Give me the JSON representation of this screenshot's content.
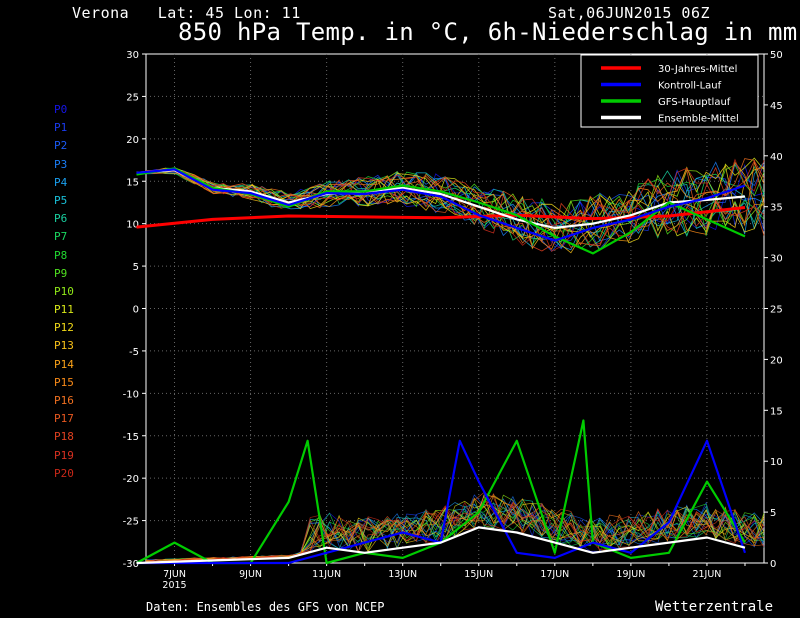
{
  "header": {
    "location": "Verona   Lat: 45 Lon: 11",
    "run": "Sat,06JUN2015 06Z",
    "title": "850 hPa Temp. in °C, 6h-Niederschlag in mm"
  },
  "footer": {
    "source": "Daten: Ensembles des GFS von NCEP",
    "brand": "Wetterzentrale"
  },
  "members": [
    {
      "label": "P0",
      "color": "#1515e8"
    },
    {
      "label": "P1",
      "color": "#1a3cf0"
    },
    {
      "label": "P2",
      "color": "#1a5af5"
    },
    {
      "label": "P3",
      "color": "#1a7df5"
    },
    {
      "label": "P4",
      "color": "#1aa0f0"
    },
    {
      "label": "P5",
      "color": "#19c0d8"
    },
    {
      "label": "P6",
      "color": "#19d0a0"
    },
    {
      "label": "P7",
      "color": "#1ad860"
    },
    {
      "label": "P8",
      "color": "#20d830"
    },
    {
      "label": "P9",
      "color": "#50e020"
    },
    {
      "label": "P10",
      "color": "#90e818"
    },
    {
      "label": "P11",
      "color": "#d8e818"
    },
    {
      "label": "P12",
      "color": "#f0d818"
    },
    {
      "label": "P13",
      "color": "#f8c018"
    },
    {
      "label": "P14",
      "color": "#f8a018"
    },
    {
      "label": "P15",
      "color": "#f88a18"
    },
    {
      "label": "P16",
      "color": "#f07020"
    },
    {
      "label": "P17",
      "color": "#e85820"
    },
    {
      "label": "P18",
      "color": "#e04020"
    },
    {
      "label": "P19",
      "color": "#d83020"
    },
    {
      "label": "P20",
      "color": "#c82818"
    }
  ],
  "chart_data": {
    "type": "line",
    "title": "850 hPa Temp. in °C, 6h-Niederschlag in mm",
    "x_ticks": [
      "7JUN",
      "9JUN",
      "11JUN",
      "13JUN",
      "15JUN",
      "17JUN",
      "19JUN",
      "21JUN"
    ],
    "x_year_label": "2015",
    "x_range": [
      "2015-06-06T06",
      "2015-06-22T12"
    ],
    "y_left": {
      "range": [
        -30,
        30
      ],
      "ticks": [
        30,
        25,
        20,
        15,
        10,
        5,
        0,
        -5,
        -10,
        -15,
        -20,
        -25,
        -30
      ]
    },
    "y_right": {
      "range": [
        0,
        50
      ],
      "ticks": [
        50,
        45,
        40,
        35,
        30,
        25,
        20,
        15,
        10,
        5,
        0
      ]
    },
    "grid": true,
    "legend_position": "top-right",
    "legend": [
      {
        "name": "30-Jahres-Mittel",
        "color": "#ff0000"
      },
      {
        "name": "Kontroll-Lauf",
        "color": "#0000ff"
      },
      {
        "name": "GFS-Hauptlauf",
        "color": "#00cc00"
      },
      {
        "name": "Ensemble-Mittel",
        "color": "#ffffff"
      }
    ],
    "temperature_series": [
      {
        "name": "30-Jahres-Mittel",
        "axis": "left",
        "color": "#ff0000",
        "x": [
          "2015-06-06",
          "2015-06-08",
          "2015-06-10",
          "2015-06-12",
          "2015-06-14",
          "2015-06-16",
          "2015-06-18",
          "2015-06-20",
          "2015-06-22"
        ],
        "values": [
          9.6,
          10.5,
          10.9,
          10.8,
          10.7,
          11.0,
          10.6,
          10.9,
          11.9
        ]
      },
      {
        "name": "Ensemble-Mittel",
        "axis": "left",
        "color": "#ffffff",
        "x": [
          "2015-06-06",
          "2015-06-07",
          "2015-06-08",
          "2015-06-09",
          "2015-06-10",
          "2015-06-11",
          "2015-06-12",
          "2015-06-13",
          "2015-06-14",
          "2015-06-15",
          "2015-06-16",
          "2015-06-17",
          "2015-06-18",
          "2015-06-19",
          "2015-06-20",
          "2015-06-21",
          "2015-06-22"
        ],
        "values": [
          16,
          16.3,
          14.2,
          13.8,
          12.5,
          13.5,
          13.8,
          14.2,
          13.5,
          12,
          10.5,
          9.5,
          10,
          11,
          12.5,
          12.8,
          13.2
        ]
      },
      {
        "name": "GFS-Hauptlauf",
        "axis": "left",
        "color": "#00cc00",
        "x": [
          "2015-06-06",
          "2015-06-07",
          "2015-06-08",
          "2015-06-09",
          "2015-06-10",
          "2015-06-11",
          "2015-06-12",
          "2015-06-13",
          "2015-06-14",
          "2015-06-15",
          "2015-06-16",
          "2015-06-17",
          "2015-06-18",
          "2015-06-19",
          "2015-06-20",
          "2015-06-21",
          "2015-06-22"
        ],
        "values": [
          15.8,
          16.5,
          14.2,
          13.5,
          12,
          13.8,
          13.8,
          14.5,
          13.8,
          12.5,
          11,
          8.5,
          6.5,
          9,
          12.5,
          10.5,
          8.5
        ]
      },
      {
        "name": "Kontroll-Lauf",
        "axis": "left",
        "color": "#0000ff",
        "x": [
          "2015-06-06",
          "2015-06-07",
          "2015-06-08",
          "2015-06-09",
          "2015-06-10",
          "2015-06-11",
          "2015-06-12",
          "2015-06-13",
          "2015-06-14",
          "2015-06-15",
          "2015-06-16",
          "2015-06-17",
          "2015-06-18",
          "2015-06-19",
          "2015-06-20",
          "2015-06-21",
          "2015-06-22"
        ],
        "values": [
          16,
          16.4,
          14,
          13.6,
          12.2,
          13.6,
          13.5,
          14,
          13.2,
          11,
          9.5,
          8,
          9.5,
          10.5,
          12,
          13,
          14.5
        ]
      }
    ],
    "precipitation_series": [
      {
        "name": "GFS-Hauptlauf",
        "axis": "right",
        "color": "#00cc00",
        "x": [
          "2015-06-06",
          "2015-06-07",
          "2015-06-08",
          "2015-06-09",
          "2015-06-10",
          "2015-06-10T12",
          "2015-06-11",
          "2015-06-12",
          "2015-06-13",
          "2015-06-14",
          "2015-06-15",
          "2015-06-16",
          "2015-06-17",
          "2015-06-17T18",
          "2015-06-18",
          "2015-06-19",
          "2015-06-20",
          "2015-06-21",
          "2015-06-22"
        ],
        "values": [
          0,
          2,
          0,
          0,
          6,
          12,
          0,
          1,
          0.5,
          2,
          5,
          12,
          1,
          14,
          2,
          0.5,
          1,
          8,
          2
        ]
      },
      {
        "name": "Kontroll-Lauf",
        "axis": "right",
        "color": "#0000ff",
        "x": [
          "2015-06-06",
          "2015-06-10",
          "2015-06-11",
          "2015-06-12",
          "2015-06-13",
          "2015-06-14",
          "2015-06-14T12",
          "2015-06-15",
          "2015-06-16",
          "2015-06-17",
          "2015-06-18",
          "2015-06-19",
          "2015-06-20",
          "2015-06-21",
          "2015-06-22"
        ],
        "values": [
          0,
          0,
          1,
          2,
          3,
          2,
          12,
          8,
          1,
          0.5,
          2,
          1,
          4,
          12,
          1
        ]
      },
      {
        "name": "Ensemble-Mittel",
        "axis": "right",
        "color": "#ffffff",
        "x": [
          "2015-06-06",
          "2015-06-10",
          "2015-06-11",
          "2015-06-12",
          "2015-06-13",
          "2015-06-14",
          "2015-06-15",
          "2015-06-16",
          "2015-06-17",
          "2015-06-18",
          "2015-06-19",
          "2015-06-20",
          "2015-06-21",
          "2015-06-22"
        ],
        "values": [
          0,
          0.5,
          1.5,
          1,
          1.5,
          2,
          3.5,
          3,
          2,
          1,
          1.5,
          2,
          2.5,
          1.5
        ]
      }
    ]
  }
}
